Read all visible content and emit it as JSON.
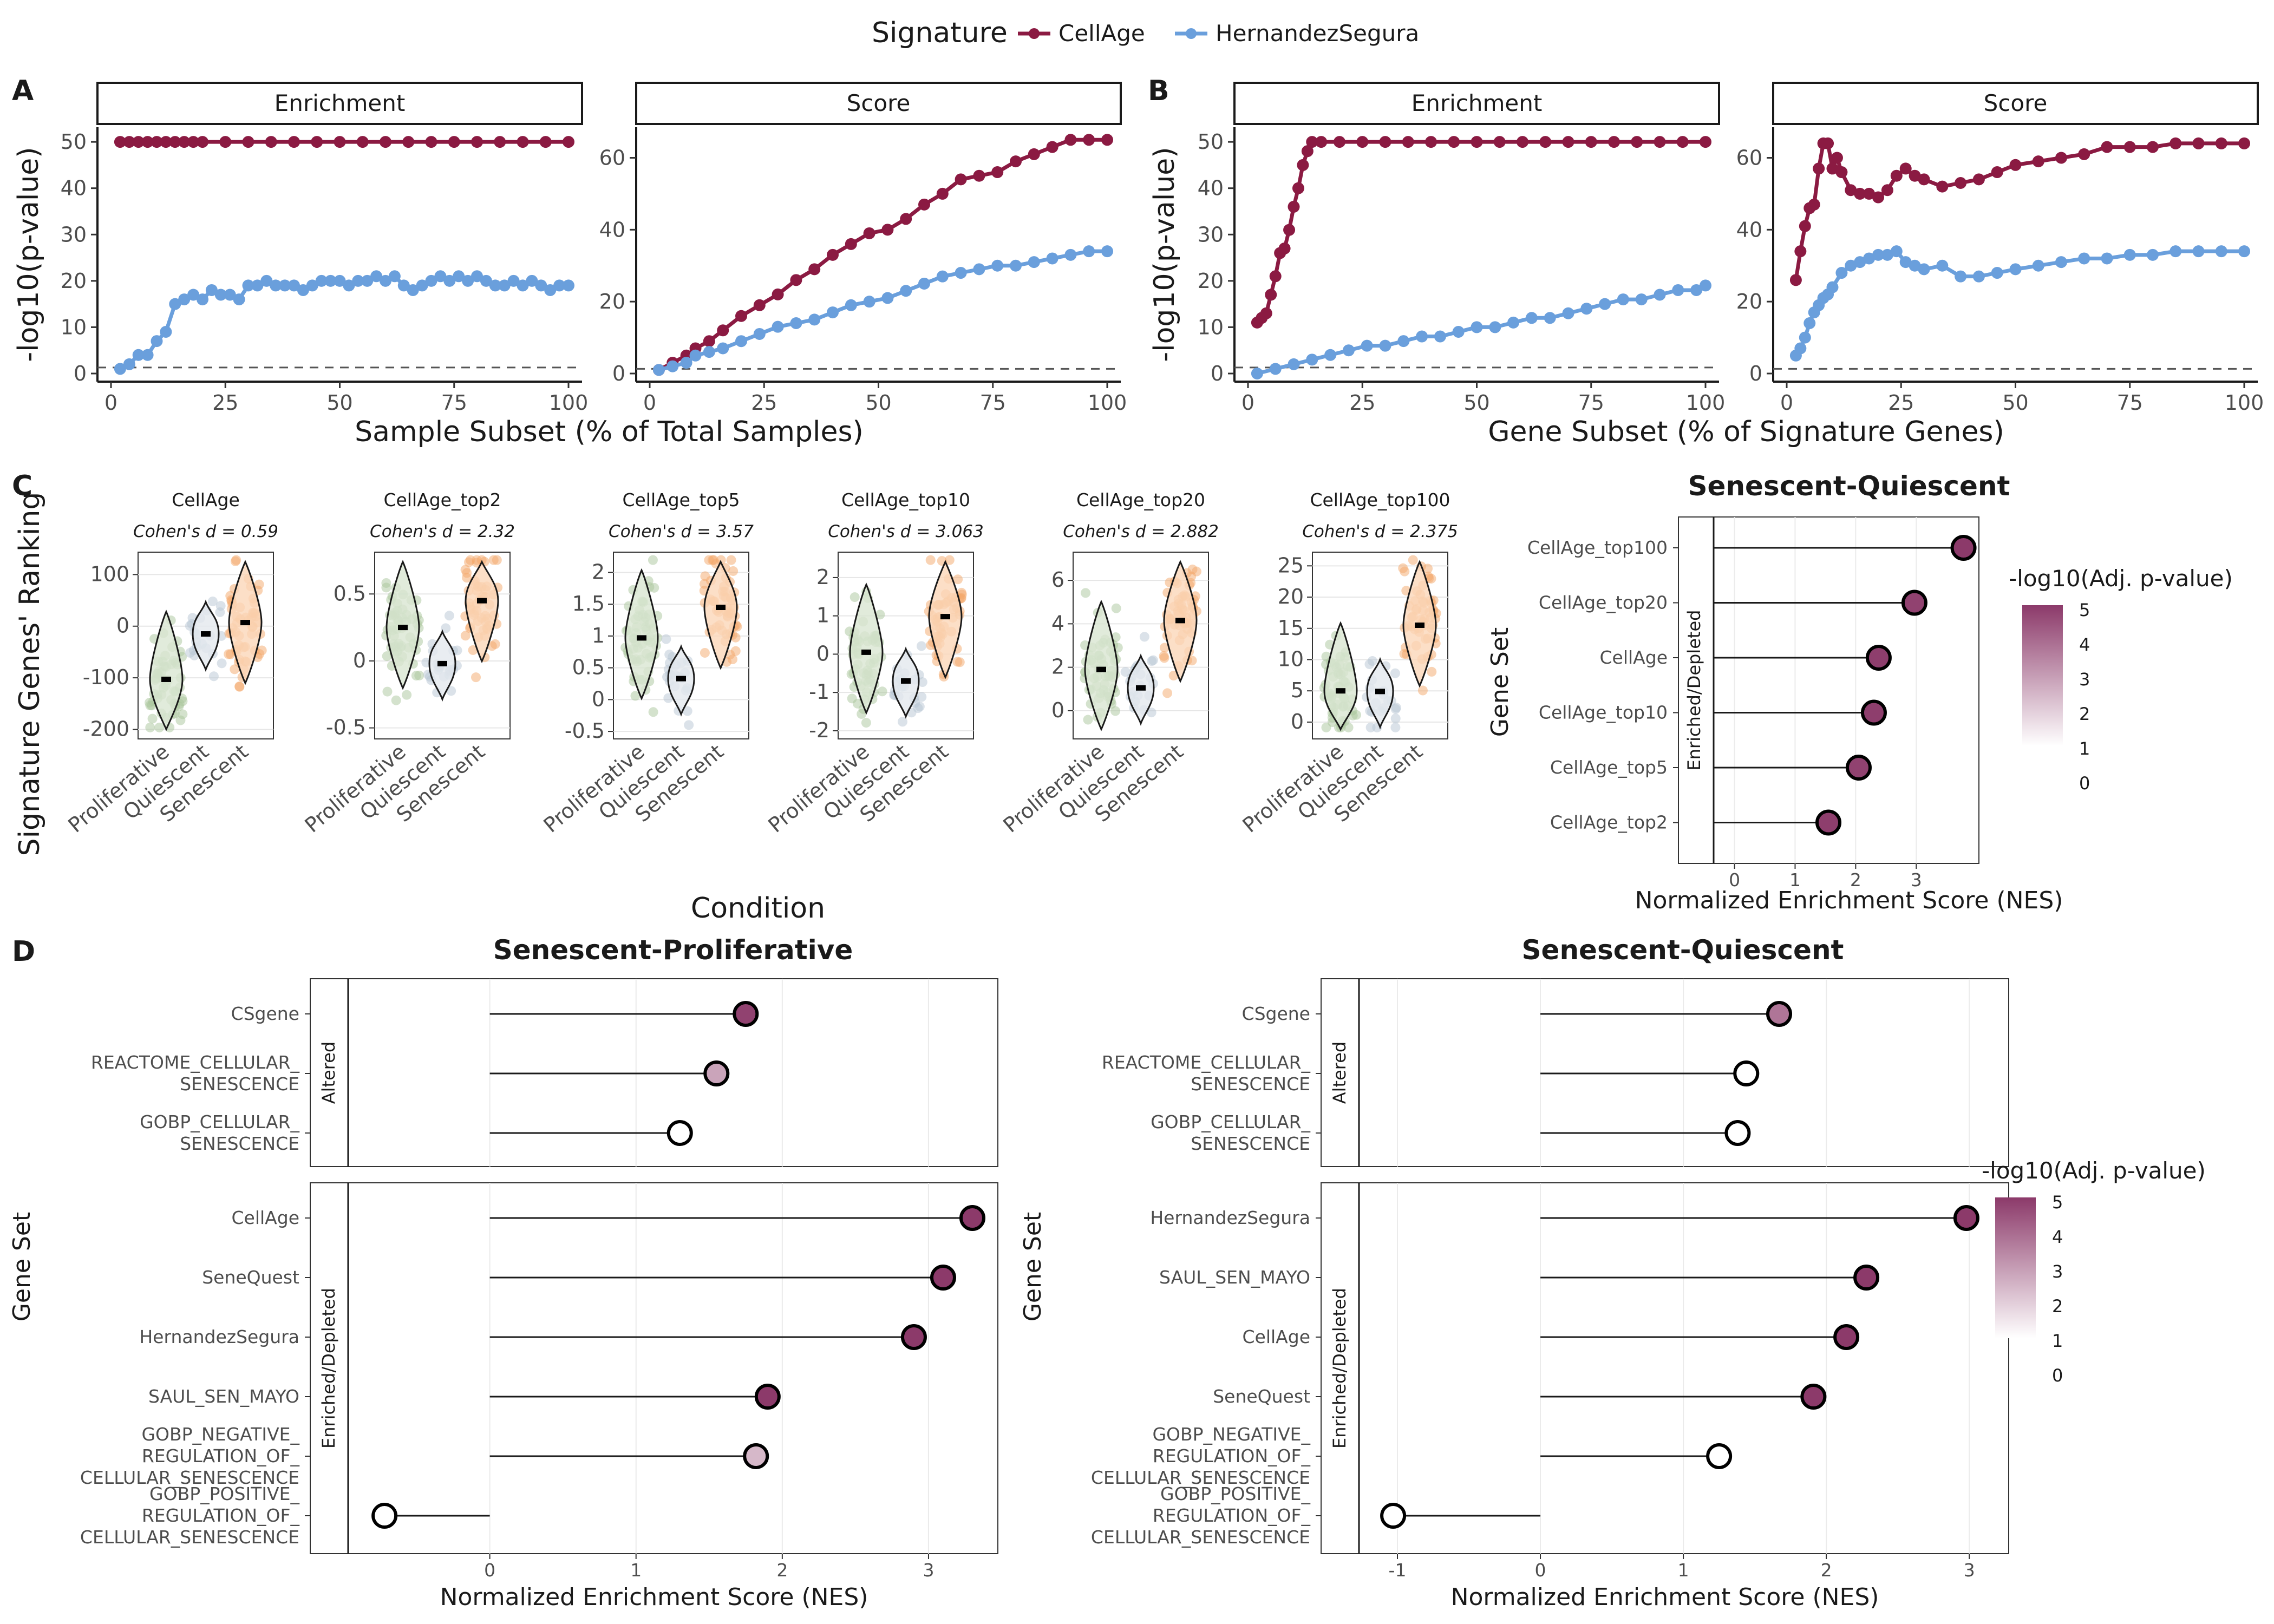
{
  "legend": {
    "title": "Signature",
    "items": [
      {
        "label": "CellAge",
        "color": "#8b1a42"
      },
      {
        "label": "HernandezSegura",
        "color": "#6a9fdc"
      }
    ]
  },
  "colors": {
    "cellage": "#8b1a42",
    "hernandez": "#6a9fdc",
    "proliferative": "#a9c69c",
    "quiescent": "#b8c6d4",
    "senescent": "#f4a76a",
    "violin_prolif_fill": "#d9e6d2",
    "violin_quies_fill": "#e4e9ee",
    "violin_senes_fill": "#fbd7b9",
    "nes_high": "#8c3a6a"
  },
  "panels": {
    "A": "A",
    "B": "B",
    "C": "C",
    "D": "D"
  },
  "chart_data": [
    {
      "id": "A-enrichment",
      "type": "line",
      "facet": "Enrichment",
      "xlabel": "Sample Subset (% of Total Samples)",
      "ylabel": "-log10(p-value)",
      "xlim": [
        0,
        100
      ],
      "ylim": [
        0,
        52
      ],
      "xticks": [
        0,
        25,
        50,
        75,
        100
      ],
      "yticks": [
        0,
        10,
        20,
        30,
        40,
        50
      ],
      "hline": 1.3,
      "series": [
        {
          "name": "CellAge",
          "x": [
            2,
            4,
            6,
            8,
            10,
            12,
            14,
            16,
            18,
            20,
            25,
            30,
            35,
            40,
            45,
            50,
            55,
            60,
            65,
            70,
            75,
            80,
            85,
            90,
            95,
            100
          ],
          "values": [
            50,
            50,
            50,
            50,
            50,
            50,
            50,
            50,
            50,
            50,
            50,
            50,
            50,
            50,
            50,
            50,
            50,
            50,
            50,
            50,
            50,
            50,
            50,
            50,
            50,
            50
          ]
        },
        {
          "name": "HernandezSegura",
          "x": [
            2,
            4,
            6,
            8,
            10,
            12,
            14,
            16,
            18,
            20,
            22,
            24,
            26,
            28,
            30,
            32,
            34,
            36,
            38,
            40,
            42,
            44,
            46,
            48,
            50,
            52,
            54,
            56,
            58,
            60,
            62,
            64,
            66,
            68,
            70,
            72,
            74,
            76,
            78,
            80,
            82,
            84,
            86,
            88,
            90,
            92,
            94,
            96,
            98,
            100
          ],
          "values": [
            1,
            2,
            4,
            4,
            7,
            9,
            15,
            16,
            17,
            16,
            18,
            17,
            17,
            16,
            19,
            19,
            20,
            19,
            19,
            19,
            18,
            19,
            20,
            20,
            20,
            19,
            20,
            20,
            21,
            20,
            21,
            19,
            18,
            19,
            20,
            21,
            20,
            21,
            20,
            21,
            20,
            19,
            19,
            20,
            19,
            20,
            19,
            18,
            19,
            19
          ]
        }
      ]
    },
    {
      "id": "A-score",
      "type": "line",
      "facet": "Score",
      "xlabel": "Sample Subset (% of Total Samples)",
      "ylabel": "",
      "xlim": [
        0,
        100
      ],
      "ylim": [
        0,
        67
      ],
      "xticks": [
        0,
        25,
        50,
        75,
        100
      ],
      "yticks": [
        0,
        20,
        40,
        60
      ],
      "hline": 1.3,
      "series": [
        {
          "name": "CellAge",
          "x": [
            2,
            5,
            8,
            10,
            13,
            16,
            20,
            24,
            28,
            32,
            36,
            40,
            44,
            48,
            52,
            56,
            60,
            64,
            68,
            72,
            76,
            80,
            84,
            88,
            92,
            96,
            100
          ],
          "values": [
            1,
            3,
            5,
            7,
            9,
            12,
            16,
            19,
            22,
            26,
            29,
            33,
            36,
            39,
            40,
            43,
            47,
            50,
            54,
            55,
            56,
            59,
            61,
            63,
            65,
            65,
            65
          ]
        },
        {
          "name": "HernandezSegura",
          "x": [
            2,
            5,
            8,
            10,
            13,
            16,
            20,
            24,
            28,
            32,
            36,
            40,
            44,
            48,
            52,
            56,
            60,
            64,
            68,
            72,
            76,
            80,
            84,
            88,
            92,
            96,
            100
          ],
          "values": [
            1,
            2,
            3,
            5,
            6,
            7,
            9,
            11,
            13,
            14,
            15,
            17,
            19,
            20,
            21,
            23,
            25,
            27,
            28,
            29,
            30,
            30,
            31,
            32,
            33,
            34,
            34
          ]
        }
      ]
    },
    {
      "id": "B-enrichment",
      "type": "line",
      "facet": "Enrichment",
      "xlabel": "Gene Subset (% of Signature Genes)",
      "ylabel": "-log10(p-value)",
      "xlim": [
        0,
        100
      ],
      "ylim": [
        0,
        52
      ],
      "xticks": [
        0,
        25,
        50,
        75,
        100
      ],
      "yticks": [
        0,
        10,
        20,
        30,
        40,
        50
      ],
      "hline": 1.3,
      "series": [
        {
          "name": "CellAge",
          "x": [
            2,
            3,
            4,
            5,
            6,
            7,
            8,
            9,
            10,
            11,
            12,
            13,
            14,
            16,
            20,
            25,
            30,
            35,
            40,
            45,
            50,
            55,
            60,
            65,
            70,
            75,
            80,
            85,
            90,
            95,
            100
          ],
          "values": [
            11,
            12,
            13,
            17,
            21,
            26,
            27,
            31,
            36,
            40,
            45,
            48,
            50,
            50,
            50,
            50,
            50,
            50,
            50,
            50,
            50,
            50,
            50,
            50,
            50,
            50,
            50,
            50,
            50,
            50,
            50
          ]
        },
        {
          "name": "HernandezSegura",
          "x": [
            2,
            6,
            10,
            14,
            18,
            22,
            26,
            30,
            34,
            38,
            42,
            46,
            50,
            54,
            58,
            62,
            66,
            70,
            74,
            78,
            82,
            86,
            90,
            94,
            98,
            100
          ],
          "values": [
            0,
            1,
            2,
            3,
            4,
            5,
            6,
            6,
            7,
            8,
            8,
            9,
            10,
            10,
            11,
            12,
            12,
            13,
            14,
            15,
            16,
            16,
            17,
            18,
            18,
            19
          ]
        }
      ]
    },
    {
      "id": "B-score",
      "type": "line",
      "facet": "Score",
      "xlabel": "Gene Subset (% of Signature Genes)",
      "ylabel": "",
      "xlim": [
        0,
        100
      ],
      "ylim": [
        0,
        67
      ],
      "xticks": [
        0,
        25,
        50,
        75,
        100
      ],
      "yticks": [
        0,
        20,
        40,
        60
      ],
      "hline": 1.3,
      "series": [
        {
          "name": "CellAge",
          "x": [
            2,
            3,
            4,
            5,
            6,
            7,
            8,
            9,
            10,
            11,
            12,
            14,
            16,
            18,
            20,
            22,
            24,
            26,
            28,
            30,
            34,
            38,
            42,
            46,
            50,
            55,
            60,
            65,
            70,
            75,
            80,
            85,
            90,
            95,
            100
          ],
          "values": [
            26,
            34,
            41,
            46,
            47,
            57,
            64,
            64,
            57,
            60,
            56,
            51,
            50,
            50,
            49,
            51,
            55,
            57,
            55,
            54,
            52,
            53,
            54,
            56,
            58,
            59,
            60,
            61,
            63,
            63,
            63,
            64,
            64,
            64,
            64
          ]
        },
        {
          "name": "HernandezSegura",
          "x": [
            2,
            3,
            4,
            5,
            6,
            7,
            8,
            9,
            10,
            12,
            14,
            16,
            18,
            20,
            22,
            24,
            26,
            28,
            30,
            34,
            38,
            42,
            46,
            50,
            55,
            60,
            65,
            70,
            75,
            80,
            85,
            90,
            95,
            100
          ],
          "values": [
            5,
            7,
            10,
            14,
            17,
            19,
            21,
            22,
            24,
            28,
            30,
            31,
            32,
            33,
            33,
            34,
            31,
            30,
            29,
            30,
            27,
            27,
            28,
            29,
            30,
            31,
            32,
            32,
            33,
            33,
            34,
            34,
            34,
            34
          ]
        }
      ]
    },
    {
      "id": "C-violins",
      "type": "violin",
      "xlabel": "Condition",
      "ylabel": "Signature Genes' Ranking",
      "categories": [
        "Proliferative",
        "Quiescent",
        "Senescent"
      ],
      "panels": [
        {
          "title": "CellAge",
          "subtitle": "Cohen's d = 0.59",
          "yticks": [
            100,
            0,
            -100,
            -200
          ],
          "ylim": [
            -210,
            135
          ],
          "medians": [
            -103,
            -15,
            7
          ]
        },
        {
          "title": "CellAge_top2",
          "subtitle": "Cohen's d = 2.32",
          "yticks": [
            0.5,
            0.0,
            -0.5
          ],
          "ylim": [
            -0.55,
            0.78
          ],
          "medians": [
            0.25,
            -0.02,
            0.45
          ]
        },
        {
          "title": "CellAge_top5",
          "subtitle": "Cohen's d = 3.57",
          "yticks": [
            2.0,
            1.5,
            1.0,
            0.5,
            0.0,
            -0.5
          ],
          "ylim": [
            -0.55,
            2.25
          ],
          "medians": [
            0.97,
            0.33,
            1.45
          ]
        },
        {
          "title": "CellAge_top10",
          "subtitle": "Cohen's d = 3.063",
          "yticks": [
            2,
            1,
            0,
            -1,
            -2
          ],
          "ylim": [
            -2.1,
            2.55
          ],
          "medians": [
            0.05,
            -0.7,
            0.98
          ]
        },
        {
          "title": "CellAge_top20",
          "subtitle": "Cohen's d = 2.882",
          "yticks": [
            6,
            4,
            2,
            0
          ],
          "ylim": [
            -1.1,
            7.1
          ],
          "medians": [
            1.9,
            1.05,
            4.15
          ]
        },
        {
          "title": "CellAge_top100",
          "subtitle": "Cohen's d = 2.375",
          "yticks": [
            25,
            20,
            15,
            10,
            5,
            0
          ],
          "ylim": [
            -2,
            26.5
          ],
          "medians": [
            5.0,
            4.9,
            15.5
          ]
        }
      ]
    },
    {
      "id": "C-lollipop",
      "type": "lollipop",
      "title": "Senescent-Quiescent",
      "xlabel": "Normalized Enrichment Score (NES)",
      "ylabel": "Gene Set",
      "strip": "Enriched/Depleted",
      "xticks": [
        0,
        1,
        2,
        3
      ],
      "xlim": [
        -0.3,
        3.9
      ],
      "categories": [
        "CellAge_top100",
        "CellAge_top20",
        "CellAge",
        "CellAge_top10",
        "CellAge_top5",
        "CellAge_top2"
      ],
      "values": [
        3.78,
        2.97,
        2.38,
        2.3,
        2.05,
        1.55
      ],
      "significance": [
        5,
        4.8,
        4.9,
        4.9,
        4.8,
        4.9
      ],
      "colorbar": {
        "title": "-log10(Adj. p-value)",
        "ticks": [
          5,
          4,
          3,
          2,
          1,
          0
        ]
      }
    },
    {
      "id": "D-left",
      "type": "lollipop",
      "title": "Senescent-Proliferative",
      "xlabel": "Normalized Enrichment Score (NES)",
      "ylabel": "Gene Set",
      "xticks": [
        0,
        1,
        2,
        3
      ],
      "xlim": [
        -0.95,
        3.4
      ],
      "groups": [
        {
          "strip": "Altered",
          "categories": [
            "CSgene",
            "REACTOME_CELLULAR_\nSENESCENCE",
            "GOBP_CELLULAR_\nSENESCENCE"
          ],
          "values": [
            1.75,
            1.55,
            1.3
          ],
          "significance": [
            4.8,
            2.3,
            0
          ]
        },
        {
          "strip": "Enriched/Depleted",
          "categories": [
            "CellAge",
            "SeneQuest",
            "HernandezSegura",
            "SAUL_SEN_MAYO",
            "GOBP_NEGATIVE_\nREGULATION_OF_\nCELLULAR_SENESCENCE",
            "GOBP_POSITIVE_\nREGULATION_OF_\nCELLULAR_SENESCENCE"
          ],
          "values": [
            3.3,
            3.1,
            2.9,
            1.9,
            1.82,
            -0.72
          ],
          "significance": [
            5,
            5,
            5,
            5,
            1.8,
            0
          ]
        }
      ]
    },
    {
      "id": "D-right",
      "type": "lollipop",
      "title": "Senescent-Quiescent",
      "xlabel": "Normalized Enrichment Score (NES)",
      "ylabel": "Gene Set",
      "xticks": [
        -1,
        0,
        1,
        2,
        3
      ],
      "xlim": [
        -1.25,
        3.2
      ],
      "groups": [
        {
          "strip": "Altered",
          "categories": [
            "CSgene",
            "REACTOME_CELLULAR_\nSENESCENCE",
            "GOBP_CELLULAR_\nSENESCENCE"
          ],
          "values": [
            1.67,
            1.44,
            1.38
          ],
          "significance": [
            3.5,
            0,
            0
          ]
        },
        {
          "strip": "Enriched/Depleted",
          "categories": [
            "HernandezSegura",
            "SAUL_SEN_MAYO",
            "CellAge",
            "SeneQuest",
            "GOBP_NEGATIVE_\nREGULATION_OF_\nCELLULAR_SENESCENCE",
            "GOBP_POSITIVE_\nREGULATION_OF_\nCELLULAR_SENESCENCE"
          ],
          "values": [
            2.98,
            2.28,
            2.14,
            1.91,
            1.25,
            -1.03
          ],
          "significance": [
            5,
            5,
            5,
            5,
            0,
            0
          ]
        }
      ],
      "colorbar": {
        "title": "-log10(Adj. p-value)",
        "ticks": [
          5,
          4,
          3,
          2,
          1,
          0
        ]
      }
    }
  ]
}
